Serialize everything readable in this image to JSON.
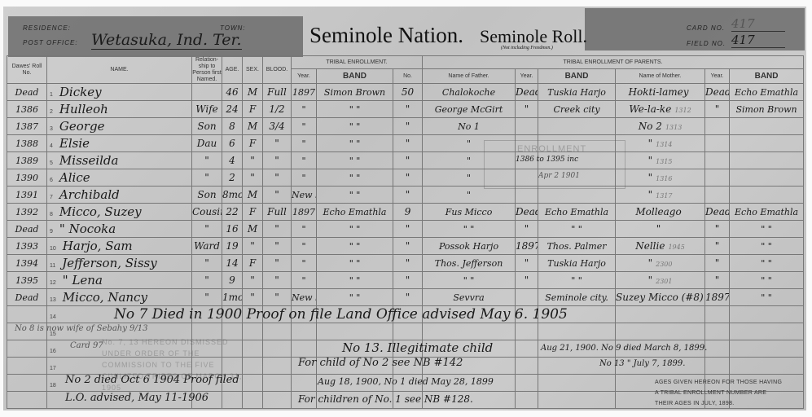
{
  "header": {
    "residence_label": "RESIDENCE:",
    "town_label": "TOWN:",
    "post_office_label": "POST OFFICE:",
    "post_office_value": "Wetasuka, Ind. Ter.",
    "title_nation": "Seminole Nation.",
    "title_roll": "Seminole Roll.",
    "subtitle": "(Not including Freedmen.)",
    "card_label": "CARD NO.",
    "card_value": "417",
    "field_label": "FIELD NO.",
    "field_value": "417"
  },
  "columns": {
    "dawes": "Dawes' Roll No.",
    "name": "NAME.",
    "relationship": "Relation-ship to Person first Named.",
    "age": "AGE.",
    "sex": "SEX.",
    "blood": "BLOOD.",
    "tribal_enrollment": "TRIBAL ENROLLMENT.",
    "tribal_enrollment_parents": "TRIBAL ENROLLMENT OF PARENTS.",
    "year": "Year.",
    "band": "BAND",
    "no": "No.",
    "father": "Name of Father.",
    "mother": "Name of Mother."
  },
  "rows": [
    {
      "roll": "Dead",
      "n": "1",
      "name": "Dickey",
      "rel": "",
      "age": "46",
      "sex": "M",
      "blood": "Full",
      "year": "1897",
      "band": "Simon Brown",
      "no": "50",
      "father": "Chalokoche",
      "fyear": "Dead",
      "fband": "Tuskia Harjo",
      "mother": "Hokti-lamey",
      "mark": "",
      "myear": "Dead",
      "mband": "Echo Emathla"
    },
    {
      "roll": "1386",
      "n": "2",
      "name": "Hulleoh",
      "rel": "Wife",
      "age": "24",
      "sex": "F",
      "blood": "1/2",
      "year": "\"",
      "band": "\"  \"",
      "no": "\"",
      "father": "George McGirt",
      "fyear": "\"",
      "fband": "Creek city",
      "mother": "We-la-ke",
      "mark": "1312",
      "myear": "\"",
      "mband": "Simon Brown"
    },
    {
      "roll": "1387",
      "n": "3",
      "name": "George",
      "rel": "Son",
      "age": "8",
      "sex": "M",
      "blood": "3/4",
      "year": "\"",
      "band": "\"  \"",
      "no": "\"",
      "father": "No 1",
      "fyear": "",
      "fband": "",
      "mother": "No 2",
      "mark": "1313",
      "myear": "",
      "mband": ""
    },
    {
      "roll": "1388",
      "n": "4",
      "name": "Elsie",
      "rel": "Dau",
      "age": "6",
      "sex": "F",
      "blood": "\"",
      "year": "\"",
      "band": "\"  \"",
      "no": "\"",
      "father": "\"",
      "fyear": "",
      "fband": "",
      "mother": "\"",
      "mark": "1314",
      "myear": "",
      "mband": ""
    },
    {
      "roll": "1389",
      "n": "5",
      "name": "Misseilda",
      "rel": "\"",
      "age": "4",
      "sex": "\"",
      "blood": "\"",
      "year": "\"",
      "band": "\"  \"",
      "no": "\"",
      "father": "\"",
      "fyear": "",
      "fband": "",
      "mother": "\"",
      "mark": "1315",
      "myear": "",
      "mband": ""
    },
    {
      "roll": "1390",
      "n": "6",
      "name": "Alice",
      "rel": "\"",
      "age": "2",
      "sex": "\"",
      "blood": "\"",
      "year": "\"",
      "band": "\"  \"",
      "no": "\"",
      "father": "\"",
      "fyear": "",
      "fband": "",
      "mother": "\"",
      "mark": "1316",
      "myear": "",
      "mband": ""
    },
    {
      "roll": "1391",
      "n": "7",
      "name": "Archibald",
      "rel": "Son",
      "age": "8mo",
      "sex": "M",
      "blood": "\"",
      "year": "New born",
      "band": "\"  \"",
      "no": "\"",
      "father": "\"",
      "fyear": "",
      "fband": "",
      "mother": "\"",
      "mark": "1317",
      "myear": "",
      "mband": ""
    },
    {
      "roll": "1392",
      "n": "8",
      "name": "Micco, Suzey",
      "rel": "Cousin",
      "age": "22",
      "sex": "F",
      "blood": "Full",
      "year": "1897",
      "band": "Echo Emathla",
      "no": "9",
      "father": "Fus Micco",
      "fyear": "Dead",
      "fband": "Echo Emathla",
      "mother": "Molleago",
      "mark": "",
      "myear": "Dead",
      "mband": "Echo Emathla"
    },
    {
      "roll": "Dead",
      "n": "9",
      "name": "\"  Nocoka",
      "rel": "\"",
      "age": "16",
      "sex": "M",
      "blood": "\"",
      "year": "\"",
      "band": "\"  \"",
      "no": "\"",
      "father": "\"  \"",
      "fyear": "\"",
      "fband": "\"  \"",
      "mother": "\"",
      "mark": "",
      "myear": "\"",
      "mband": "\"  \""
    },
    {
      "roll": "1393",
      "n": "10",
      "name": "Harjo, Sam",
      "rel": "Ward",
      "age": "19",
      "sex": "\"",
      "blood": "\"",
      "year": "\"",
      "band": "\"  \"",
      "no": "\"",
      "father": "Possok Harjo",
      "fyear": "1897",
      "fband": "Thos. Palmer",
      "mother": "Nellie",
      "mark": "1945",
      "myear": "\"",
      "mband": "\"  \""
    },
    {
      "roll": "1394",
      "n": "11",
      "name": "Jefferson, Sissy",
      "rel": "\"",
      "age": "14",
      "sex": "F",
      "blood": "\"",
      "year": "\"",
      "band": "\"  \"",
      "no": "\"",
      "father": "Thos. Jefferson",
      "fyear": "\"",
      "fband": "Tuskia Harjo",
      "mother": "\"",
      "mark": "2300",
      "myear": "\"",
      "mband": "\"  \""
    },
    {
      "roll": "1395",
      "n": "12",
      "name": "\"  Lena",
      "rel": "\"",
      "age": "9",
      "sex": "\"",
      "blood": "\"",
      "year": "\"",
      "band": "\"  \"",
      "no": "\"",
      "father": "\"  \"",
      "fyear": "\"",
      "fband": "\"  \"",
      "mother": "\"",
      "mark": "2301",
      "myear": "\"",
      "mband": "\"  \""
    },
    {
      "roll": "Dead",
      "n": "13",
      "name": "Micco, Nancy",
      "rel": "\"",
      "age": "1mo",
      "sex": "\"",
      "blood": "\"",
      "year": "New born",
      "band": "\"  \"",
      "no": "\"",
      "father": "Sevvra",
      "fyear": "",
      "fband": "Seminole city.",
      "mother": "Suzey Micco (#8)",
      "mark": "",
      "myear": "1897",
      "mband": "\"  \""
    }
  ],
  "blank_row_numbers": [
    "14",
    "15",
    "16",
    "17",
    "18",
    ""
  ],
  "stamp_enrollment": {
    "title": "ENROLLMENT",
    "range": "1386 to 1395 inc",
    "date": "Apr 2 1901"
  },
  "stamp_dismissed": "No. 7, 13 HEREON DISMISSED UNDER ORDER OF THE COMMISSION TO THE FIVE CIVILIZED TRIBES OF MARCH 31, 1905",
  "notes": {
    "n14": "No 7 Died in 1900 Proof on file Land Office advised May 6. 1905",
    "n15": "No 8 is now wife of Sebahy 9/13",
    "card": "Card 97",
    "illegitimate": "No 13. Illegitimate child",
    "died9": "Aug 21, 1900. No 9 died March 8, 1899.",
    "died13": "No 13 \"  July 7, 1899.",
    "child2": "For child of No 2 see NB #142",
    "died2": "No 2 died Oct 6 1904 Proof filed",
    "lo": "L.O. advised, May 11-1906",
    "died1": "Aug 18, 1900, No 1 died May 28, 1899",
    "children1": "For children of No. 1 see NB #128.",
    "ages": "AGES GIVEN HEREON FOR THOSE HAVING A TRIBAL ENROLLMENT NUMBER ARE THEIR AGES IN JULY, 1898."
  }
}
